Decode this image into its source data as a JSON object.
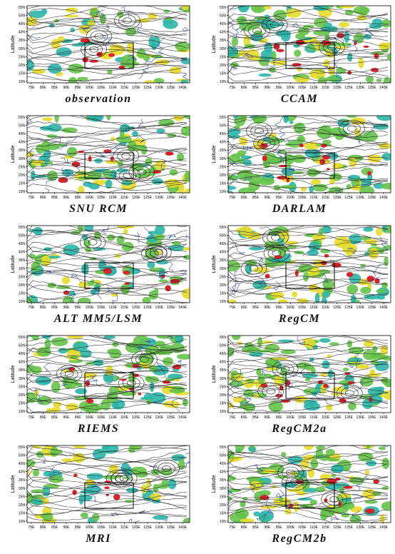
{
  "axis": {
    "ylabel": "Latitude",
    "lat_ticks": [
      "10N",
      "15N",
      "20N",
      "25N",
      "30N",
      "35N",
      "40N",
      "45N",
      "50N",
      "55N"
    ],
    "lon_ticks": [
      "75E",
      "80E",
      "85E",
      "90E",
      "95E",
      "100E",
      "105E",
      "110E",
      "115E",
      "120E",
      "125E",
      "130E",
      "135E",
      "140E"
    ]
  },
  "colors": {
    "cyan": "#2bb5a8",
    "green": "#66c24a",
    "yellow": "#e6dc2a",
    "red": "#d8232a",
    "coast": "#3a55b0",
    "stream": "#222222"
  },
  "panels": [
    {
      "id": "observation",
      "name": "observation",
      "density": 0.22
    },
    {
      "id": "ccam",
      "name": "CCAM",
      "density": 0.55
    },
    {
      "id": "snu",
      "name": "SNU RCM",
      "density": 0.35
    },
    {
      "id": "darlam",
      "name": "DARLAM",
      "density": 0.55
    },
    {
      "id": "altmm5",
      "name": "ALT MM5/LSM",
      "density": 0.28
    },
    {
      "id": "regcm",
      "name": "RegCM",
      "density": 0.45
    },
    {
      "id": "riems",
      "name": "RIEMS",
      "density": 0.5
    },
    {
      "id": "regcm2a",
      "name": "RegCM2a",
      "density": 0.55
    },
    {
      "id": "mri",
      "name": "MRI",
      "density": 0.22
    },
    {
      "id": "regcm2b",
      "name": "RegCM2b",
      "density": 0.55
    }
  ]
}
